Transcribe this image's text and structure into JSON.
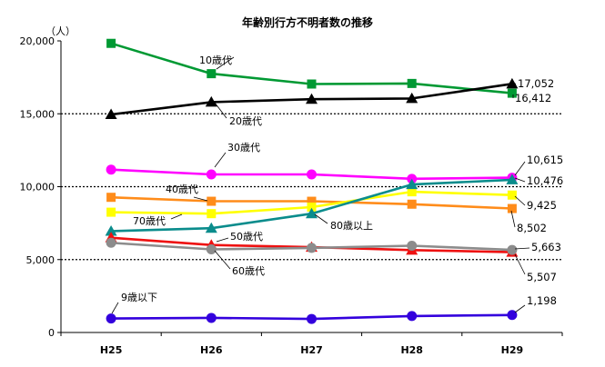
{
  "chart_data": {
    "type": "line",
    "title": "年齢別行方不明者数の推移",
    "y_unit": "（人）",
    "categories": [
      "H25",
      "H26",
      "H27",
      "H28",
      "H29"
    ],
    "ylim": [
      0,
      20000
    ],
    "yticks": [
      "0",
      "5,000",
      "10,000",
      "15,000",
      "20,000"
    ],
    "grid": "dotted at 5,000 / 10,000 / 15,000",
    "legend": "none (inline series labels)",
    "series": [
      {
        "name": "10歳代",
        "color": "#009933",
        "marker": "square",
        "values": [
          19830,
          17750,
          17040,
          17080,
          16412
        ],
        "end_label": "16,412"
      },
      {
        "name": "20歳代",
        "color": "#000000",
        "marker": "triangle",
        "values": [
          14950,
          15800,
          16000,
          16050,
          17052
        ],
        "end_label": "17,052"
      },
      {
        "name": "30歳代",
        "color": "#ff00ff",
        "marker": "circle",
        "values": [
          11170,
          10840,
          10840,
          10540,
          10615
        ],
        "end_label": "10,615"
      },
      {
        "name": "40歳代",
        "color": "#ff8c1a",
        "marker": "square",
        "values": [
          9270,
          9000,
          9000,
          8800,
          8502
        ],
        "end_label": "8,502"
      },
      {
        "name": "70歳代",
        "color": "#ffff00",
        "marker": "square",
        "values": [
          8250,
          8150,
          8600,
          9650,
          9425
        ],
        "end_label": "9,425"
      },
      {
        "name": "80歳以上",
        "color": "#0a8c8c",
        "marker": "triangle",
        "values": [
          6950,
          7150,
          8150,
          10150,
          10476
        ],
        "end_label": "10,476"
      },
      {
        "name": "50歳代",
        "color": "#ee1111",
        "marker": "triangle",
        "values": [
          6500,
          6000,
          5850,
          5650,
          5507
        ],
        "end_label": "5,507"
      },
      {
        "name": "60歳代",
        "color": "#8c8c8c",
        "marker": "circle",
        "values": [
          6150,
          5700,
          5800,
          5950,
          5663
        ],
        "end_label": "5,663"
      },
      {
        "name": "9歳以下",
        "color": "#3300dd",
        "marker": "circle",
        "values": [
          960,
          1000,
          930,
          1130,
          1198
        ],
        "end_label": "1,198"
      }
    ]
  }
}
